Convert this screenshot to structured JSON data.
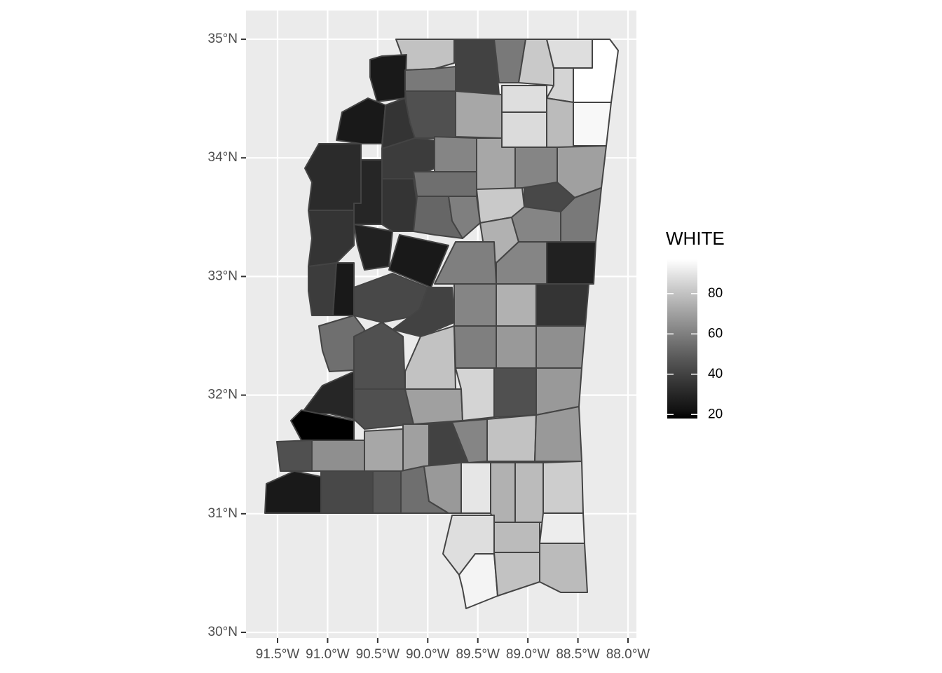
{
  "chart_data": {
    "type": "map",
    "legend_title": "WHITE",
    "values": [
      80,
      40,
      58,
      82,
      88,
      97,
      85,
      25,
      58,
      45,
      72,
      88,
      87,
      78,
      95,
      25,
      35,
      32,
      38,
      62,
      72,
      62,
      70,
      30,
      35,
      55,
      82,
      42,
      58,
      52,
      60,
      75,
      62,
      35,
      28,
      25,
      60,
      62,
      28,
      38,
      25,
      42,
      40,
      62,
      75,
      35,
      55,
      45,
      80,
      60,
      68,
      65,
      30,
      18,
      45,
      70,
      85,
      45,
      68,
      45,
      65,
      72,
      70,
      40,
      62,
      80,
      68,
      25,
      42,
      48,
      55,
      68,
      90,
      75,
      78,
      83,
      88,
      78,
      92,
      94,
      80,
      78
    ],
    "colorbar_lim": [
      18,
      97
    ],
    "legend_ticks": [
      20,
      40,
      60,
      80
    ],
    "color_low": "#000000",
    "color_high": "#ffffff",
    "xlim": [
      -91.815,
      -87.916
    ],
    "ylim": [
      29.953,
      35.242
    ],
    "xticks": [
      {
        "value": -91.5,
        "label": "91.5°W"
      },
      {
        "value": -91.0,
        "label": "91.0°W"
      },
      {
        "value": -90.5,
        "label": "90.5°W"
      },
      {
        "value": -90.0,
        "label": "90.0°W"
      },
      {
        "value": -89.5,
        "label": "89.5°W"
      },
      {
        "value": -89.0,
        "label": "89.0°W"
      },
      {
        "value": -88.5,
        "label": "88.5°W"
      },
      {
        "value": -88.0,
        "label": "88.0°W"
      }
    ],
    "yticks": [
      {
        "value": 30,
        "label": "30°N"
      },
      {
        "value": 31,
        "label": "31°N"
      },
      {
        "value": 32,
        "label": "32°N"
      },
      {
        "value": 33,
        "label": "33°N"
      },
      {
        "value": 34,
        "label": "34°N"
      },
      {
        "value": 35,
        "label": "35°N"
      }
    ],
    "grid": true
  }
}
